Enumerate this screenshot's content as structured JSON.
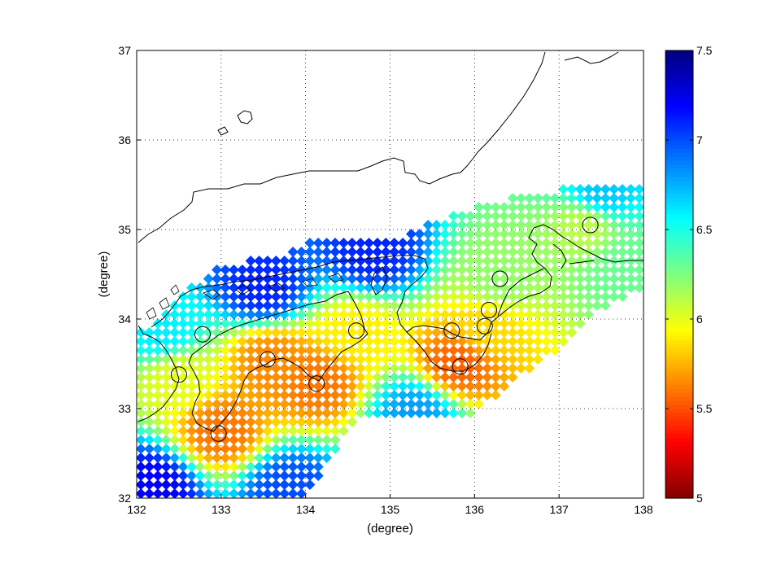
{
  "chart_data": {
    "type": "heatmap",
    "xlabel": "(degree)",
    "ylabel": "(degree)",
    "xlim": [
      132,
      138
    ],
    "ylim": [
      32,
      37
    ],
    "xticks": [
      "132",
      "133",
      "134",
      "135",
      "136",
      "137",
      "138"
    ],
    "yticks": [
      "32",
      "33",
      "34",
      "35",
      "36",
      "37"
    ],
    "grid": "dotted",
    "colorbar": {
      "range": [
        5,
        7.5
      ],
      "ticks": [
        "5",
        "5.5",
        "6",
        "6.5",
        "7",
        "7.5"
      ],
      "colormap": "jet-reversed"
    },
    "cell_size_deg": [
      0.1,
      0.1
    ],
    "value_field": [
      {
        "lon": 132.3,
        "lat": 33.85,
        "v": 6.6
      },
      {
        "lon": 132.5,
        "lat": 33.35,
        "v": 6.0
      },
      {
        "lon": 133.0,
        "lat": 32.75,
        "v": 5.6
      },
      {
        "lon": 133.6,
        "lat": 33.55,
        "v": 5.65
      },
      {
        "lon": 134.15,
        "lat": 33.3,
        "v": 5.6
      },
      {
        "lon": 134.6,
        "lat": 33.85,
        "v": 5.9
      },
      {
        "lon": 135.8,
        "lat": 33.5,
        "v": 5.55
      },
      {
        "lon": 136.15,
        "lat": 33.9,
        "v": 5.85
      },
      {
        "lon": 136.3,
        "lat": 34.45,
        "v": 6.2
      },
      {
        "lon": 137.3,
        "lat": 35.05,
        "v": 6.1
      },
      {
        "lon": 133.5,
        "lat": 34.35,
        "v": 7.1
      },
      {
        "lon": 134.8,
        "lat": 34.75,
        "v": 7.1
      },
      {
        "lon": 132.2,
        "lat": 32.1,
        "v": 7.2
      },
      {
        "lon": 133.8,
        "lat": 32.1,
        "v": 7.0
      },
      {
        "lon": 135.3,
        "lat": 32.95,
        "v": 6.8
      },
      {
        "lon": 137.5,
        "lat": 35.4,
        "v": 6.7
      },
      {
        "lon": 137.8,
        "lat": 34.6,
        "v": 6.3
      }
    ],
    "markers": [
      {
        "lon": 132.78,
        "lat": 33.83
      },
      {
        "lon": 132.5,
        "lat": 33.38
      },
      {
        "lon": 132.97,
        "lat": 32.72
      },
      {
        "lon": 133.55,
        "lat": 33.55
      },
      {
        "lon": 134.13,
        "lat": 33.28
      },
      {
        "lon": 134.6,
        "lat": 33.87
      },
      {
        "lon": 135.73,
        "lat": 33.87
      },
      {
        "lon": 135.83,
        "lat": 33.47
      },
      {
        "lon": 136.12,
        "lat": 33.92
      },
      {
        "lon": 136.17,
        "lat": 34.1
      },
      {
        "lon": 136.3,
        "lat": 34.45
      },
      {
        "lon": 137.37,
        "lat": 35.05
      }
    ]
  }
}
